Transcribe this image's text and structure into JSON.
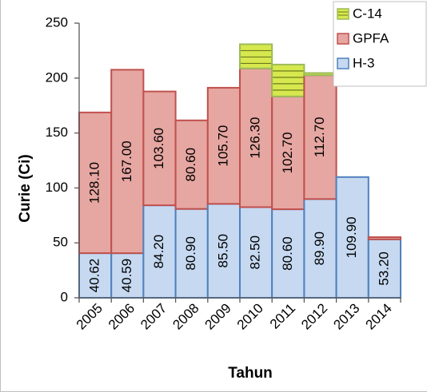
{
  "chart_data": {
    "type": "bar",
    "stacked": true,
    "categories": [
      "2005",
      "2006",
      "2007",
      "2008",
      "2009",
      "2010",
      "2011",
      "2012",
      "2013",
      "2014"
    ],
    "series": [
      {
        "name": "H-3",
        "color": "#c6d9f1",
        "values": [
          40.62,
          40.59,
          84.2,
          80.9,
          85.5,
          82.5,
          80.6,
          89.9,
          109.9,
          53.2
        ],
        "labels": [
          "40.62",
          "40.59",
          "84.20",
          "80.90",
          "85.50",
          "82.50",
          "80.60",
          "89.90",
          "109.90",
          "53.20"
        ]
      },
      {
        "name": "GPFA",
        "color": "#e6a6a1",
        "values": [
          128.1,
          167.0,
          103.6,
          80.6,
          105.7,
          126.3,
          102.7,
          112.7,
          0,
          2
        ],
        "labels": [
          "128.10",
          "167.00",
          "103.60",
          "80.60",
          "105.70",
          "126.30",
          "102.70",
          "112.70",
          "",
          ""
        ]
      },
      {
        "name": "C-14",
        "color": "#d7e84f",
        "values": [
          0,
          0,
          0,
          0,
          0,
          22,
          29,
          2,
          0,
          0
        ],
        "labels": [
          "",
          "",
          "",
          "",
          "",
          "",
          "",
          "",
          "",
          ""
        ]
      }
    ],
    "legend_order": [
      "C-14",
      "GPFA",
      "H-3"
    ],
    "xlabel": "Tahun",
    "ylabel": "Curie (Ci)",
    "ylim": [
      0,
      250
    ],
    "yticks": [
      "0",
      "50",
      "100",
      "150",
      "200",
      "250"
    ],
    "ytick_values": [
      0,
      50,
      100,
      150,
      200,
      250
    ],
    "legend_position": "top-right",
    "grid": false
  }
}
